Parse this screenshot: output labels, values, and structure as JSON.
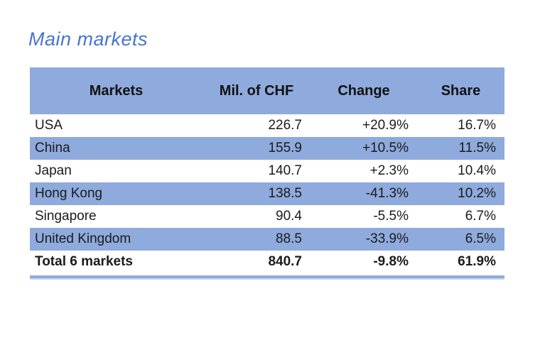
{
  "title": "Main markets",
  "theme": {
    "accent_blue": "#4674D4",
    "band_blue": "#8FAADC",
    "band_blue_light": "#C9D5EE",
    "text_color": "#1B1B1B",
    "page_bg": "#FFFFFF"
  },
  "table": {
    "columns": [
      "Markets",
      "Mil. of CHF",
      "Change",
      "Share"
    ],
    "rows": [
      {
        "market": "USA",
        "chf": "226.7",
        "change": "+20.9%",
        "share": "16.7%"
      },
      {
        "market": "China",
        "chf": "155.9",
        "change": "+10.5%",
        "share": "11.5%"
      },
      {
        "market": "Japan",
        "chf": "140.7",
        "change": "+2.3%",
        "share": "10.4%"
      },
      {
        "market": "Hong Kong",
        "chf": "138.5",
        "change": "-41.3%",
        "share": "10.2%"
      },
      {
        "market": "Singapore",
        "chf": "90.4",
        "change": "-5.5%",
        "share": "6.7%"
      },
      {
        "market": "United Kingdom",
        "chf": "88.5",
        "change": "-33.9%",
        "share": "6.5%"
      }
    ],
    "total": {
      "market": "Total 6 markets",
      "chf": "840.7",
      "change": "-9.8%",
      "share": "61.9%"
    }
  },
  "chart_data": {
    "type": "table",
    "title": "Main markets",
    "columns": [
      "Markets",
      "Mil. of CHF",
      "Change",
      "Share"
    ],
    "rows": [
      [
        "USA",
        226.7,
        "+20.9%",
        "16.7%"
      ],
      [
        "China",
        155.9,
        "+10.5%",
        "11.5%"
      ],
      [
        "Japan",
        140.7,
        "+2.3%",
        "10.4%"
      ],
      [
        "Hong Kong",
        138.5,
        "-41.3%",
        "10.2%"
      ],
      [
        "Singapore",
        90.4,
        "-5.5%",
        "6.7%"
      ],
      [
        "United Kingdom",
        88.5,
        "-33.9%",
        "6.5%"
      ],
      [
        "Total 6 markets",
        840.7,
        "-9.8%",
        "61.9%"
      ]
    ]
  }
}
